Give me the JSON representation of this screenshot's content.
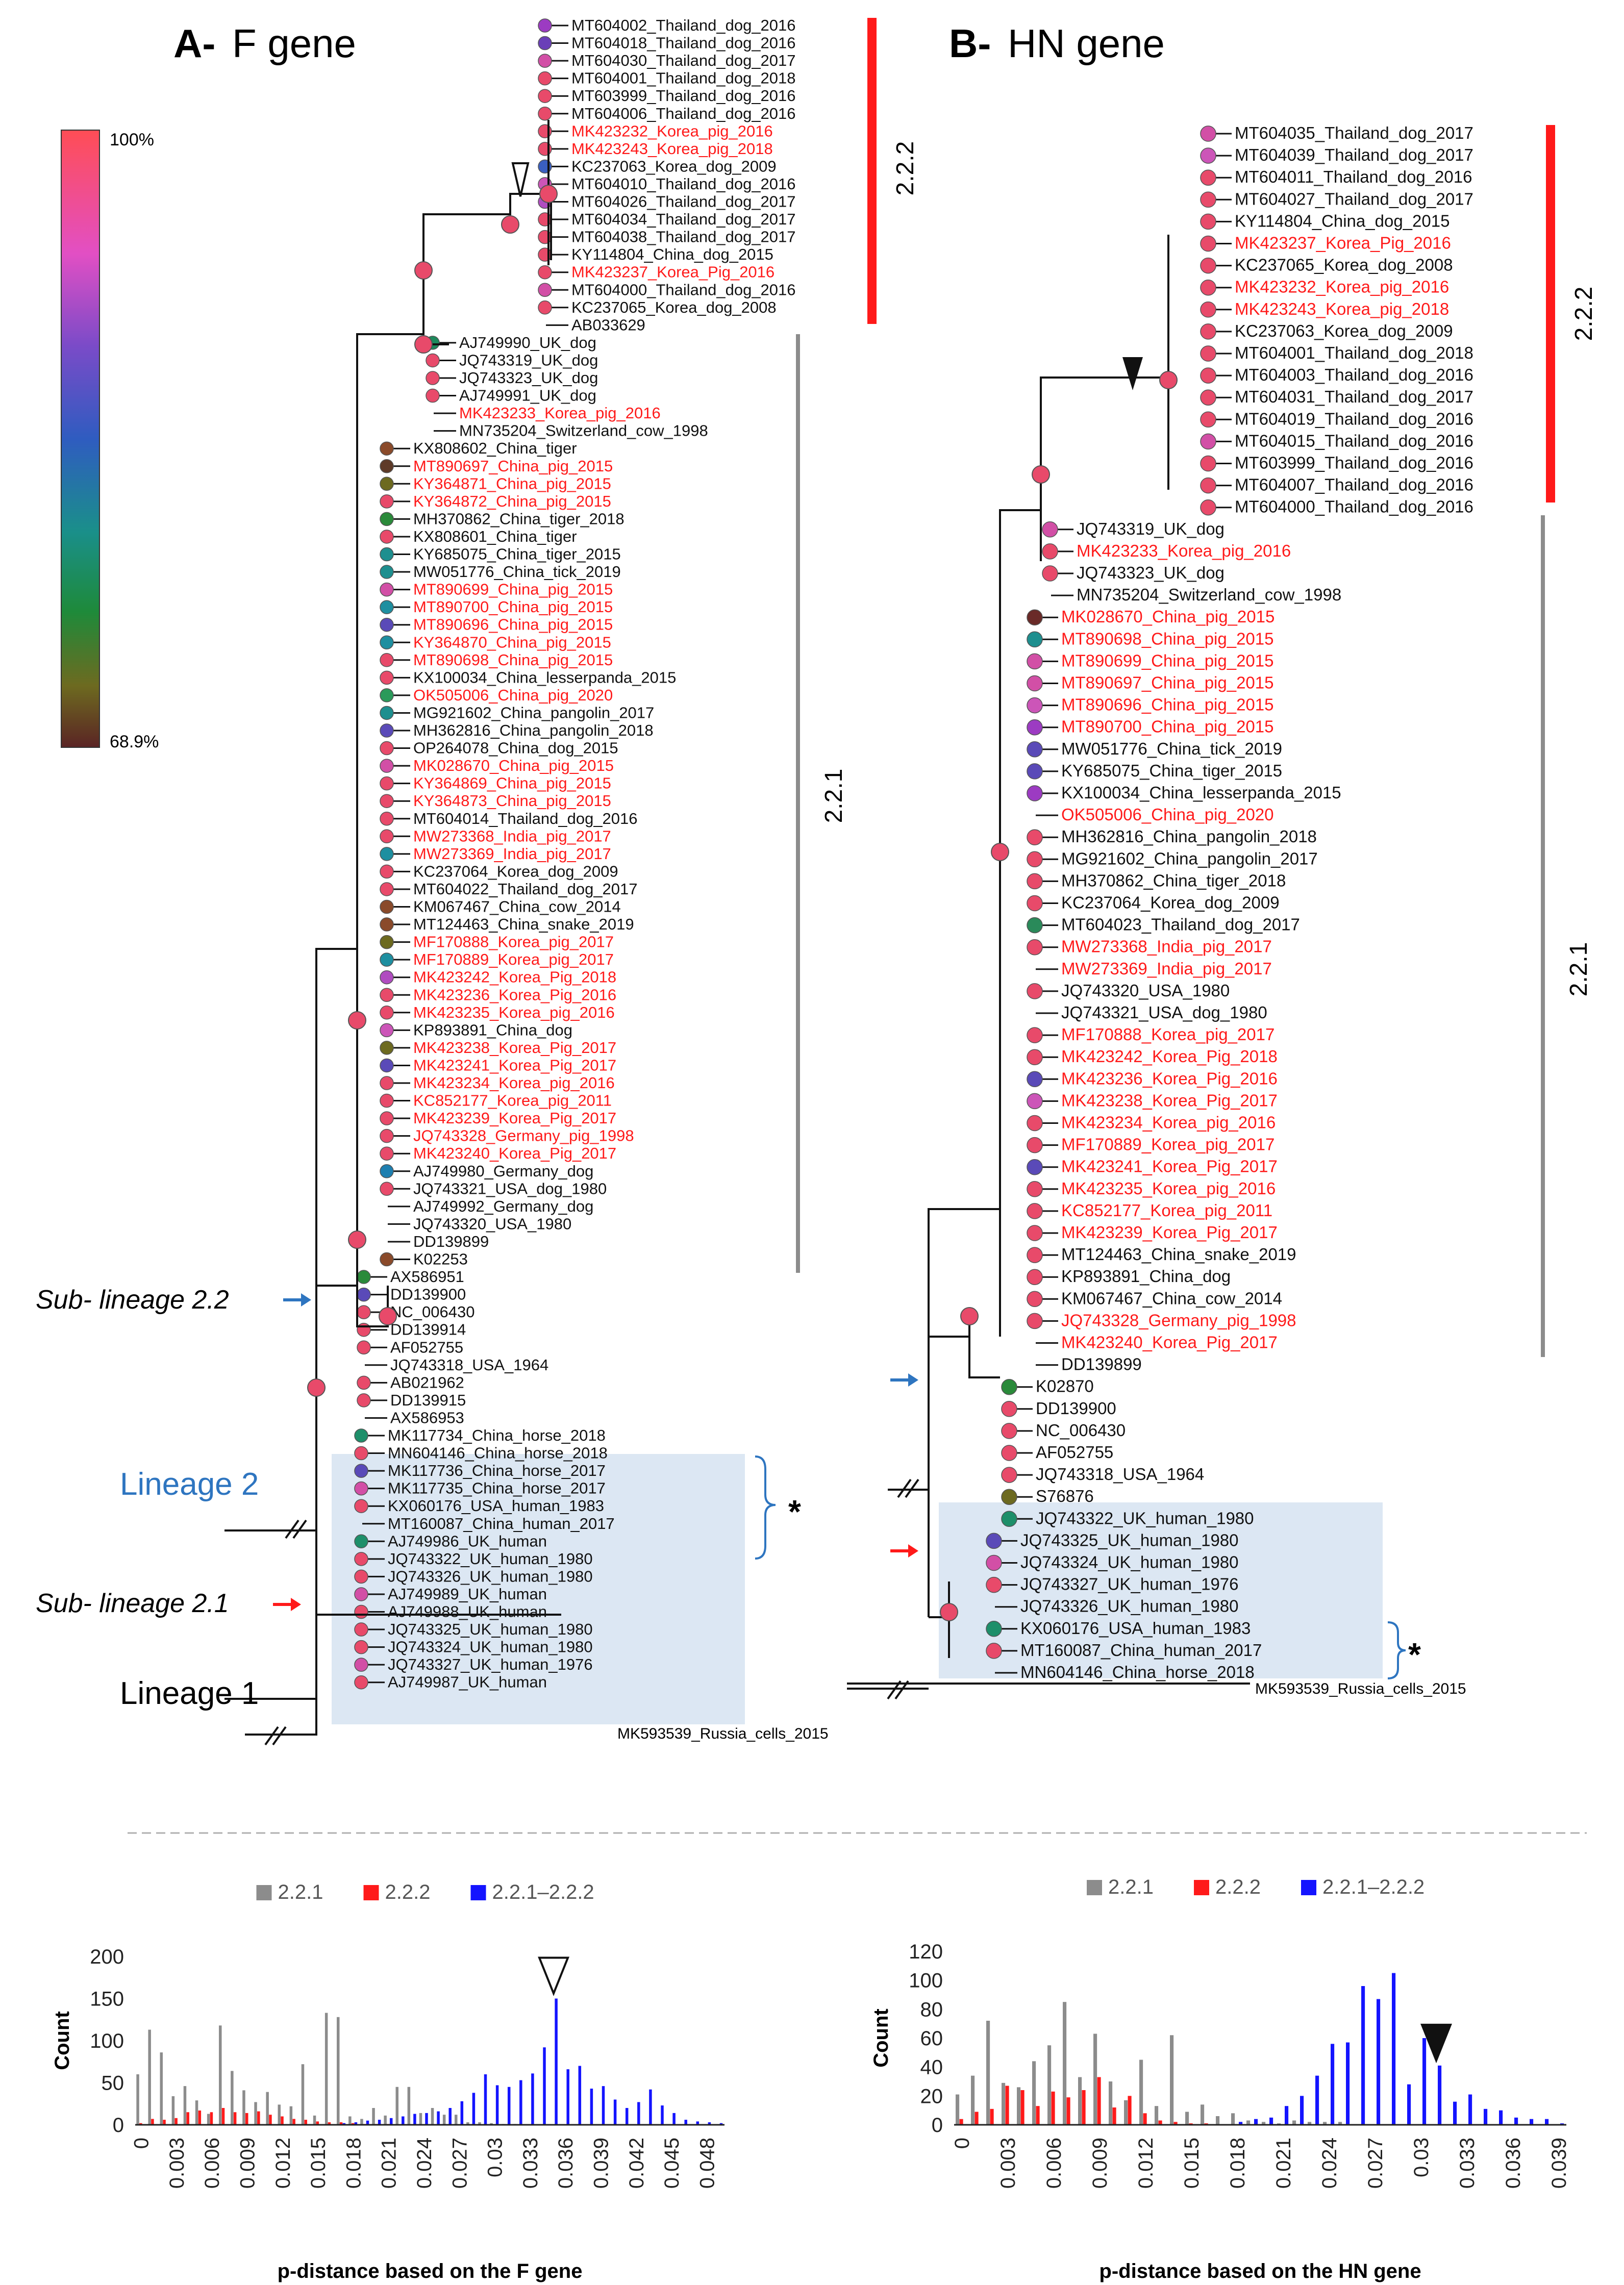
{
  "panelA": {
    "letter": "A-",
    "title": "F gene",
    "sub22": "Sub- lineage 2.2",
    "lineage2": "Lineage 2",
    "sub21": "Sub- lineage 2.1",
    "lineage1": "Lineage 1",
    "clade222": "2.2.2",
    "clade221": "2.2.1",
    "asterisk": "*",
    "outgroup": "MK593539_Russia_cells_2015",
    "colorbar": {
      "max": "100%",
      "min": "68.9%"
    }
  },
  "panelB": {
    "letter": "B-",
    "title": "HN gene",
    "clade222": "2.2.2",
    "clade221": "2.2.1",
    "asterisk": "*",
    "outgroup": "MK593539_Russia_cells_2015"
  },
  "treeA_tips": [
    [
      "MT604002_Thailand_dog_2016",
      0,
      "#9c3bc2"
    ],
    [
      "MT604018_Thailand_dog_2016",
      0,
      "#6a3fb8"
    ],
    [
      "MT604030_Thailand_dog_2017",
      0,
      "#d24fa6"
    ],
    [
      "MT604001_Thailand_dog_2018",
      0,
      "#e84a6a"
    ],
    [
      "MT603999_Thailand_dog_2016",
      0,
      "#e84a6a"
    ],
    [
      "MT604006_Thailand_dog_2016",
      0,
      "#e84a6a"
    ],
    [
      "MK423232_Korea_pig_2016",
      1,
      "#e84a6a"
    ],
    [
      "MK423243_Korea_pig_2018",
      1,
      "#e84a6a"
    ],
    [
      "KC237063_Korea_dog_2009",
      0,
      "#3a5fc0"
    ],
    [
      "MT604010_Thailand_dog_2016",
      0,
      "#cc55b8"
    ],
    [
      "MT604026_Thailand_dog_2017",
      0,
      "#b04cc0"
    ],
    [
      "MT604034_Thailand_dog_2017",
      0,
      "#e84a6a"
    ],
    [
      "MT604038_Thailand_dog_2017",
      0,
      "#e84a6a"
    ],
    [
      "KY114804_China_dog_2015",
      0,
      "#e84a6a"
    ],
    [
      "MK423237_Korea_Pig_2016",
      1,
      "#e84a6a"
    ],
    [
      "MT604000_Thailand_dog_2016",
      0,
      "#d24fa6"
    ],
    [
      "KC237065_Korea_dog_2008",
      0,
      "#e84a6a"
    ],
    [
      "AB033629",
      0,
      ""
    ],
    [
      "AJ749990_UK_dog",
      0,
      "#1d8a5c"
    ],
    [
      "JQ743319_UK_dog",
      0,
      "#e84a6a"
    ],
    [
      "JQ743323_UK_dog",
      0,
      "#e84a6a"
    ],
    [
      "AJ749991_UK_dog",
      0,
      "#e84a6a"
    ],
    [
      "MK423233_Korea_pig_2016",
      1,
      ""
    ],
    [
      "MN735204_Switzerland_cow_1998",
      0,
      ""
    ],
    [
      "KX808602_China_tiger",
      0,
      "#8a4a2a"
    ],
    [
      "MT890697_China_pig_2015",
      1,
      "#5e3a28"
    ],
    [
      "KY364871_China_pig_2015",
      1,
      "#6d6a20"
    ],
    [
      "KY364872_China_pig_2015",
      1,
      "#e84a6a"
    ],
    [
      "MH370862_China_tiger_2018",
      0,
      "#2a8a3a"
    ],
    [
      "KX808601_China_tiger",
      0,
      "#e84a6a"
    ],
    [
      "KY685075_China_tiger_2015",
      0,
      "#1e8f8f"
    ],
    [
      "MW051776_China_tick_2019",
      0,
      "#1e8f8f"
    ],
    [
      "MT890699_China_pig_2015",
      1,
      "#d24fa6"
    ],
    [
      "MT890700_China_pig_2015",
      1,
      "#1e8fa0"
    ],
    [
      "MT890696_China_pig_2015",
      1,
      "#5a4ab8"
    ],
    [
      "KY364870_China_pig_2015",
      1,
      "#1e8fa0"
    ],
    [
      "MT890698_China_pig_2015",
      1,
      "#e84a6a"
    ],
    [
      "KX100034_China_lesserpanda_2015",
      0,
      "#e84a6a"
    ],
    [
      "OK505006_China_pig_2020",
      1,
      "#2a9a5a"
    ],
    [
      "MG921602_China_pangolin_2017",
      0,
      "#1e8f8f"
    ],
    [
      "MH362816_China_pangolin_2018",
      0,
      "#5a4ab8"
    ],
    [
      "OP264078_China_dog_2015",
      0,
      "#e84a6a"
    ],
    [
      "MK028670_China_pig_2015",
      1,
      "#d24fa6"
    ],
    [
      "KY364869_China_pig_2015",
      1,
      "#e84a6a"
    ],
    [
      "KY364873_China_pig_2015",
      1,
      "#e84a6a"
    ],
    [
      "MT604014_Thailand_dog_2016",
      0,
      "#e84a6a"
    ],
    [
      "MW273368_India_pig_2017",
      1,
      "#e84a6a"
    ],
    [
      "MW273369_India_pig_2017",
      1,
      "#1e8fa0"
    ],
    [
      "KC237064_Korea_dog_2009",
      0,
      "#e84a6a"
    ],
    [
      "MT604022_Thailand_dog_2017",
      0,
      "#e84a6a"
    ],
    [
      "KM067467_China_cow_2014",
      0,
      "#8a4a2a"
    ],
    [
      "MT124463_China_snake_2019",
      0,
      "#8a4a2a"
    ],
    [
      "MF170888_Korea_pig_2017",
      1,
      "#6d6a20"
    ],
    [
      "MF170889_Korea_pig_2017",
      1,
      "#1e8fa0"
    ],
    [
      "MK423242_Korea_Pig_2018",
      1,
      "#b04cc0"
    ],
    [
      "MK423236_Korea_Pig_2016",
      1,
      "#e84a6a"
    ],
    [
      "MK423235_Korea_pig_2016",
      1,
      "#e84a6a"
    ],
    [
      "KP893891_China_dog",
      0,
      "#cc55b8"
    ],
    [
      "MK423238_Korea_Pig_2017",
      1,
      "#6d6a20"
    ],
    [
      "MK423241_Korea_Pig_2017",
      1,
      "#5a4ab8"
    ],
    [
      "MK423234_Korea_pig_2016",
      1,
      "#e84a6a"
    ],
    [
      "KC852177_Korea_pig_2011",
      1,
      "#e84a6a"
    ],
    [
      "MK423239_Korea_Pig_2017",
      1,
      "#e84a6a"
    ],
    [
      "JQ743328_Germany_pig_1998",
      1,
      "#e84a6a"
    ],
    [
      "MK423240_Korea_Pig_2017",
      1,
      "#e84a6a"
    ],
    [
      "AJ749980_Germany_dog",
      0,
      "#1e7fb0"
    ],
    [
      "JQ743321_USA_dog_1980",
      0,
      "#e84a6a"
    ],
    [
      "AJ749992_Germany_dog",
      0,
      ""
    ],
    [
      "JQ743320_USA_1980",
      0,
      ""
    ],
    [
      "DD139899",
      0,
      ""
    ],
    [
      "K02253",
      0,
      "#8a4a2a"
    ],
    [
      "AX586951",
      0,
      "#2a8a3a"
    ],
    [
      "DD139900",
      0,
      "#5a4ab8"
    ],
    [
      "NC_006430",
      0,
      "#e84a6a"
    ],
    [
      "DD139914",
      0,
      "#e84a6a"
    ],
    [
      "AF052755",
      0,
      "#e84a6a"
    ],
    [
      "JQ743318_USA_1964",
      0,
      ""
    ],
    [
      "AB021962",
      0,
      "#e84a6a"
    ],
    [
      "DD139915",
      0,
      "#e84a6a"
    ],
    [
      "AX586953",
      0,
      ""
    ],
    [
      "MK117734_China_horse_2018",
      0,
      "#1e8f6a"
    ],
    [
      "MN604146_China_horse_2018",
      0,
      "#e84a6a"
    ],
    [
      "MK117736_China_horse_2017",
      0,
      "#5a4ab8"
    ],
    [
      "MK117735_China_horse_2017",
      0,
      "#d24fa6"
    ],
    [
      "KX060176_USA_human_1983",
      0,
      "#e84a6a"
    ],
    [
      "MT160087_China_human_2017",
      0,
      ""
    ],
    [
      "AJ749986_UK_human",
      0,
      "#1e8f6a"
    ],
    [
      "JQ743322_UK_human_1980",
      0,
      "#e84a6a"
    ],
    [
      "JQ743326_UK_human_1980",
      0,
      "#e84a6a"
    ],
    [
      "AJ749989_UK_human",
      0,
      "#d24fa6"
    ],
    [
      "AJ749988_UK_human",
      0,
      "#e84a6a"
    ],
    [
      "JQ743325_UK_human_1980",
      0,
      "#e84a6a"
    ],
    [
      "JQ743324_UK_human_1980",
      0,
      "#e84a6a"
    ],
    [
      "JQ743327_UK_human_1976",
      0,
      "#d24fa6"
    ],
    [
      "AJ749987_UK_human",
      0,
      "#e84a6a"
    ]
  ],
  "treeB_tips": [
    [
      "MT604035_Thailand_dog_2017",
      0,
      "#d24fa6"
    ],
    [
      "MT604039_Thailand_dog_2017",
      0,
      "#cc55b8"
    ],
    [
      "MT604011_Thailand_dog_2016",
      0,
      "#e84a6a"
    ],
    [
      "MT604027_Thailand_dog_2017",
      0,
      "#e84a6a"
    ],
    [
      "KY114804_China_dog_2015",
      0,
      "#e84a6a"
    ],
    [
      "MK423237_Korea_Pig_2016",
      1,
      "#e84a6a"
    ],
    [
      "KC237065_Korea_dog_2008",
      0,
      "#e84a6a"
    ],
    [
      "MK423232_Korea_pig_2016",
      1,
      "#e84a6a"
    ],
    [
      "MK423243_Korea_pig_2018",
      1,
      "#e84a6a"
    ],
    [
      "KC237063_Korea_dog_2009",
      0,
      "#e84a6a"
    ],
    [
      "MT604001_Thailand_dog_2018",
      0,
      "#e84a6a"
    ],
    [
      "MT604003_Thailand_dog_2016",
      0,
      "#e84a6a"
    ],
    [
      "MT604031_Thailand_dog_2017",
      0,
      "#e84a6a"
    ],
    [
      "MT604019_Thailand_dog_2016",
      0,
      "#e84a6a"
    ],
    [
      "MT604015_Thailand_dog_2016",
      0,
      "#d24fa6"
    ],
    [
      "MT603999_Thailand_dog_2016",
      0,
      "#e84a6a"
    ],
    [
      "MT604007_Thailand_dog_2016",
      0,
      "#e84a6a"
    ],
    [
      "MT604000_Thailand_dog_2016",
      0,
      "#e84a6a"
    ],
    [
      "JQ743319_UK_dog",
      0,
      "#d24fa6"
    ],
    [
      "MK423233_Korea_pig_2016",
      1,
      "#e84a6a"
    ],
    [
      "JQ743323_UK_dog",
      0,
      "#e84a6a"
    ],
    [
      "MN735204_Switzerland_cow_1998",
      0,
      ""
    ],
    [
      "MK028670_China_pig_2015",
      1,
      "#6a2a28"
    ],
    [
      "MT890698_China_pig_2015",
      1,
      "#1e8f8f"
    ],
    [
      "MT890699_China_pig_2015",
      1,
      "#d24fa6"
    ],
    [
      "MT890697_China_pig_2015",
      1,
      "#d24fa6"
    ],
    [
      "MT890696_China_pig_2015",
      1,
      "#cc55b8"
    ],
    [
      "MT890700_China_pig_2015",
      1,
      "#9c3bc2"
    ],
    [
      "MW051776_China_tick_2019",
      0,
      "#5a4ab8"
    ],
    [
      "KY685075_China_tiger_2015",
      0,
      "#5a4ab8"
    ],
    [
      "KX100034_China_lesserpanda_2015",
      0,
      "#9c3bc2"
    ],
    [
      "OK505006_China_pig_2020",
      1,
      ""
    ],
    [
      "MH362816_China_pangolin_2018",
      0,
      "#e84a6a"
    ],
    [
      "MG921602_China_pangolin_2017",
      0,
      "#e84a6a"
    ],
    [
      "MH370862_China_tiger_2018",
      0,
      "#e84a6a"
    ],
    [
      "KC237064_Korea_dog_2009",
      0,
      "#e84a6a"
    ],
    [
      "MT604023_Thailand_dog_2017",
      0,
      "#2a8a5a"
    ],
    [
      "MW273368_India_pig_2017",
      1,
      "#e84a6a"
    ],
    [
      "MW273369_India_pig_2017",
      1,
      ""
    ],
    [
      "JQ743320_USA_1980",
      0,
      "#e84a6a"
    ],
    [
      "JQ743321_USA_dog_1980",
      0,
      ""
    ],
    [
      "MF170888_Korea_pig_2017",
      1,
      "#e84a6a"
    ],
    [
      "MK423242_Korea_Pig_2018",
      1,
      "#e84a6a"
    ],
    [
      "MK423236_Korea_Pig_2016",
      1,
      "#5a4ab8"
    ],
    [
      "MK423238_Korea_Pig_2017",
      1,
      "#cc55b8"
    ],
    [
      "MK423234_Korea_pig_2016",
      1,
      "#e84a6a"
    ],
    [
      "MF170889_Korea_pig_2017",
      1,
      "#e84a6a"
    ],
    [
      "MK423241_Korea_Pig_2017",
      1,
      "#5a4ab8"
    ],
    [
      "MK423235_Korea_pig_2016",
      1,
      "#e84a6a"
    ],
    [
      "KC852177_Korea_pig_2011",
      1,
      "#e84a6a"
    ],
    [
      "MK423239_Korea_Pig_2017",
      1,
      "#e84a6a"
    ],
    [
      "MT124463_China_snake_2019",
      0,
      "#e84a6a"
    ],
    [
      "KP893891_China_dog",
      0,
      "#e84a6a"
    ],
    [
      "KM067467_China_cow_2014",
      0,
      "#e84a6a"
    ],
    [
      "JQ743328_Germany_pig_1998",
      1,
      "#e84a6a"
    ],
    [
      "MK423240_Korea_Pig_2017",
      1,
      ""
    ],
    [
      "DD139899",
      0,
      ""
    ],
    [
      "K02870",
      0,
      "#2a8a3a"
    ],
    [
      "DD139900",
      0,
      "#e84a6a"
    ],
    [
      "NC_006430",
      0,
      "#e84a6a"
    ],
    [
      "AF052755",
      0,
      "#e84a6a"
    ],
    [
      "JQ743318_USA_1964",
      0,
      "#e84a6a"
    ],
    [
      "S76876",
      0,
      "#6d6a20"
    ],
    [
      "JQ743322_UK_human_1980",
      0,
      "#1e8f6a"
    ],
    [
      "JQ743325_UK_human_1980",
      0,
      "#5a4ab8"
    ],
    [
      "JQ743324_UK_human_1980",
      0,
      "#d24fa6"
    ],
    [
      "JQ743327_UK_human_1976",
      0,
      "#e84a6a"
    ],
    [
      "JQ743326_UK_human_1980",
      0,
      ""
    ],
    [
      "KX060176_USA_human_1983",
      0,
      "#1e8f6a"
    ],
    [
      "MT160087_China_human_2017",
      0,
      "#e84a6a"
    ],
    [
      "MN604146_China_horse_2018",
      0,
      ""
    ]
  ],
  "chart_data": [
    {
      "type": "bar",
      "title": "",
      "xlabel": "p-distance based on the F gene",
      "ylabel": "Count",
      "ylim": [
        0,
        200
      ],
      "yticks": [
        0,
        50,
        100,
        150,
        200
      ],
      "xticks": [
        "0",
        "0.003",
        "0.006",
        "0.009",
        "0.012",
        "0.015",
        "0.018",
        "0.021",
        "0.024",
        "0.027",
        "0.03",
        "0.033",
        "0.036",
        "0.039",
        "0.042",
        "0.045",
        "0.048"
      ],
      "bin_width": 0.001,
      "x_max": 0.05,
      "legend": [
        "2.2.1",
        "2.2.2",
        "2.2.1–2.2.2"
      ],
      "legend_position": "top",
      "series": [
        {
          "name": "2.2.1",
          "color": "#8c8c8c",
          "values": [
            60,
            113,
            86,
            34,
            46,
            29,
            13,
            118,
            64,
            41,
            27,
            39,
            24,
            22,
            72,
            11,
            133,
            128,
            10,
            7,
            20,
            11,
            45,
            45,
            14,
            20,
            12,
            12,
            3,
            3,
            2,
            1,
            1,
            0,
            0,
            0,
            0,
            0,
            0,
            0,
            0,
            0,
            0,
            0,
            0,
            0,
            0,
            0,
            0,
            0
          ]
        },
        {
          "name": "2.2.2",
          "color": "#ff1a1a",
          "values": [
            2,
            7,
            6,
            8,
            15,
            17,
            15,
            20,
            15,
            14,
            16,
            12,
            10,
            7,
            6,
            4,
            3,
            3,
            2,
            1,
            1,
            1,
            0,
            0,
            0,
            0,
            0,
            0,
            0,
            0,
            0,
            0,
            0,
            0,
            0,
            0,
            0,
            0,
            0,
            0,
            0,
            0,
            0,
            0,
            0,
            0,
            0,
            0,
            0,
            0
          ]
        },
        {
          "name": "2.2.1–2.2.2",
          "color": "#1414ff",
          "values": [
            0,
            0,
            0,
            0,
            0,
            0,
            0,
            0,
            0,
            0,
            0,
            0,
            0,
            0,
            0,
            0,
            0,
            2,
            3,
            5,
            6,
            8,
            10,
            13,
            14,
            16,
            20,
            28,
            38,
            60,
            47,
            45,
            53,
            61,
            92,
            150,
            66,
            70,
            43,
            46,
            30,
            20,
            27,
            42,
            23,
            14,
            6,
            4,
            3,
            2
          ]
        }
      ],
      "annotation": {
        "marker": "open-triangle",
        "x": 0.035
      }
    },
    {
      "type": "bar",
      "title": "",
      "xlabel": "p-distance based on the HN gene",
      "ylabel": "Count",
      "ylim": [
        0,
        120
      ],
      "yticks": [
        0,
        20,
        40,
        60,
        80,
        100,
        120
      ],
      "xticks": [
        "0",
        "0.003",
        "0.006",
        "0.009",
        "0.012",
        "0.015",
        "0.018",
        "0.021",
        "0.024",
        "0.027",
        "0.03",
        "0.033",
        "0.036",
        "0.039"
      ],
      "bin_width": 0.001,
      "x_max": 0.04,
      "legend": [
        "2.2.1",
        "2.2.2",
        "2.2.1–2.2.2"
      ],
      "legend_position": "top",
      "series": [
        {
          "name": "2.2.1",
          "color": "#8c8c8c",
          "values": [
            21,
            34,
            72,
            29,
            26,
            44,
            55,
            85,
            33,
            63,
            30,
            17,
            45,
            13,
            62,
            9,
            14,
            6,
            8,
            3,
            2,
            1,
            3,
            2,
            2,
            2,
            0,
            0,
            0,
            0,
            0,
            0,
            0,
            0,
            0,
            0,
            0,
            0,
            0,
            0
          ]
        },
        {
          "name": "2.2.2",
          "color": "#ff1a1a",
          "values": [
            4,
            9,
            11,
            27,
            24,
            13,
            23,
            19,
            24,
            33,
            12,
            20,
            8,
            3,
            2,
            1,
            1,
            0,
            0,
            0,
            0,
            0,
            0,
            0,
            0,
            0,
            0,
            0,
            0,
            0,
            0,
            0,
            0,
            0,
            0,
            0,
            0,
            0,
            0,
            0
          ]
        },
        {
          "name": "2.2.1–2.2.2",
          "color": "#1414ff",
          "values": [
            0,
            0,
            0,
            0,
            0,
            0,
            0,
            0,
            0,
            0,
            0,
            0,
            0,
            0,
            0,
            0,
            0,
            0,
            2,
            4,
            5,
            13,
            20,
            34,
            56,
            57,
            96,
            87,
            105,
            28,
            60,
            41,
            16,
            21,
            11,
            10,
            5,
            4,
            4,
            1
          ]
        }
      ],
      "annotation": {
        "marker": "filled-triangle",
        "x": 0.031
      }
    }
  ]
}
